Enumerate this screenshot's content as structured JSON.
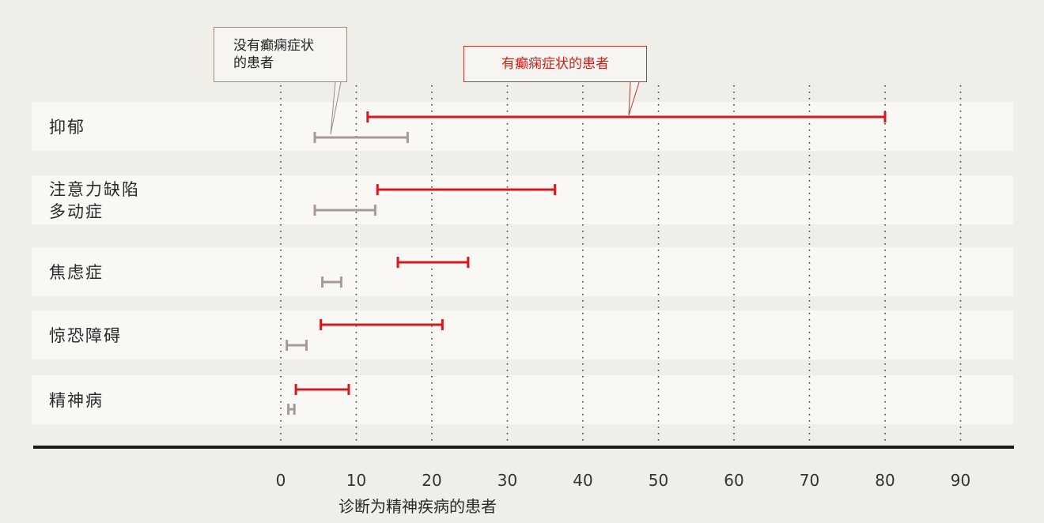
{
  "chart_data": {
    "type": "range-bar",
    "categories": [
      "抑郁",
      "注意力缺陷\n多动症",
      "焦虑症",
      "惊恐障碍",
      "精神病"
    ],
    "series": [
      {
        "name": "有癫痫症状的患者",
        "color": "#d7191c",
        "ranges": [
          [
            11.5,
            80
          ],
          [
            12.8,
            36.3
          ],
          [
            15.5,
            24.8
          ],
          [
            5.3,
            21.4
          ],
          [
            2.0,
            9.0
          ]
        ]
      },
      {
        "name": "没有癫痫症状\n的患者",
        "color": "#a89a93",
        "ranges": [
          [
            4.5,
            16.8
          ],
          [
            4.5,
            12.5
          ],
          [
            5.5,
            8.0
          ],
          [
            0.8,
            3.4
          ],
          [
            1.0,
            1.8
          ]
        ]
      }
    ],
    "xlabel": "诊断为精神疾病的患者",
    "xlim": [
      0,
      90
    ],
    "xticks": [
      0,
      10,
      20,
      30,
      40,
      50,
      60,
      70,
      80,
      90
    ],
    "grid": "vertical-dotted",
    "legend": "callouts-top"
  }
}
